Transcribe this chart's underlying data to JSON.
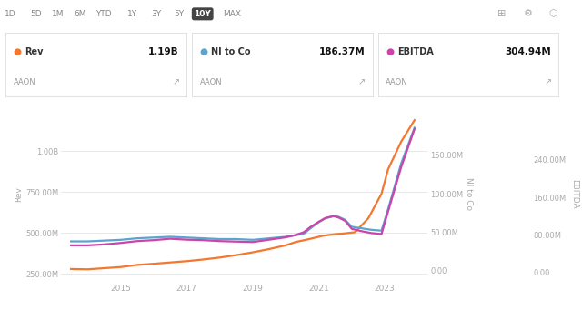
{
  "background_color": "#ffffff",
  "toolbar_buttons": [
    "1D",
    "5D",
    "1M",
    "6M",
    "YTD",
    "1Y",
    "3Y",
    "5Y",
    "10Y",
    "MAX"
  ],
  "active_button": "10Y",
  "legend_items": [
    {
      "dot_color": "#f4772e",
      "label": "Rev",
      "value": "1.19B",
      "sub": "AAON"
    },
    {
      "dot_color": "#5ba4cf",
      "label": "NI to Co",
      "value": "186.37M",
      "sub": "AAON"
    },
    {
      "dot_color": "#cc44aa",
      "label": "EBITDA",
      "value": "304.94M",
      "sub": "AAON"
    }
  ],
  "rev_color": "#f4772e",
  "ni_color": "#5ba4cf",
  "ebitda_color": "#cc44aa",
  "left_ytick_labels": [
    "250.00M",
    "500.00M",
    "750.00M",
    "1.00B"
  ],
  "left_ytick_vals": [
    250,
    500,
    750,
    1000
  ],
  "ni_ytick_labels": [
    "0.00",
    "50.00M",
    "100.00M",
    "150.00M"
  ],
  "ni_ytick_vals": [
    0,
    50,
    100,
    150
  ],
  "ebitda_ytick_labels": [
    "0.00",
    "80.00M",
    "160.00M",
    "240.00M"
  ],
  "ebitda_ytick_vals": [
    0,
    80,
    160,
    240
  ],
  "rev_ylabel": "Rev",
  "ni_ylabel": "NI to Co",
  "ebitda_ylabel": "EBITDA",
  "xtick_labels": [
    "2015",
    "2017",
    "2019",
    "2021",
    "2023"
  ],
  "rev_xlim": [
    2013.2,
    2024.3
  ],
  "rev_ylim": [
    200,
    1280
  ],
  "ni_ylim": [
    -15,
    215
  ],
  "ebitda_ylim": [
    -20,
    355
  ],
  "rev_data_x": [
    2013.5,
    2014.0,
    2014.5,
    2015.0,
    2015.5,
    2016.0,
    2016.5,
    2017.0,
    2017.5,
    2018.0,
    2018.5,
    2019.0,
    2019.5,
    2020.0,
    2020.3,
    2020.6,
    2020.9,
    2021.1,
    2021.3,
    2021.5,
    2021.8,
    2022.1,
    2022.5,
    2022.9,
    2023.1,
    2023.5,
    2023.9
  ],
  "rev_data_y": [
    280,
    278,
    285,
    292,
    305,
    312,
    320,
    328,
    338,
    350,
    365,
    382,
    402,
    425,
    445,
    458,
    472,
    482,
    488,
    493,
    498,
    505,
    590,
    740,
    890,
    1060,
    1190
  ],
  "ni_data_x": [
    2013.5,
    2014.0,
    2014.5,
    2015.0,
    2015.5,
    2016.0,
    2016.5,
    2017.0,
    2017.5,
    2018.0,
    2018.5,
    2019.0,
    2019.5,
    2020.0,
    2020.3,
    2020.55,
    2020.75,
    2021.0,
    2021.2,
    2021.45,
    2021.6,
    2021.8,
    2022.0,
    2022.3,
    2022.6,
    2022.9,
    2023.1,
    2023.5,
    2023.9
  ],
  "ni_data_y": [
    38,
    38,
    39,
    40,
    42,
    43,
    44,
    43,
    42,
    41,
    41,
    40,
    42,
    44,
    46,
    48,
    55,
    63,
    68,
    71,
    70,
    66,
    57,
    55,
    53,
    52,
    80,
    140,
    186
  ],
  "ebitda_data_x": [
    2013.5,
    2014.0,
    2014.5,
    2015.0,
    2015.5,
    2016.0,
    2016.5,
    2017.0,
    2017.5,
    2018.0,
    2018.5,
    2019.0,
    2019.5,
    2020.0,
    2020.3,
    2020.55,
    2020.75,
    2021.0,
    2021.2,
    2021.45,
    2021.6,
    2021.8,
    2022.0,
    2022.3,
    2022.6,
    2022.9,
    2023.1,
    2023.5,
    2023.9
  ],
  "ebitda_data_y": [
    58,
    58,
    60,
    63,
    67,
    69,
    72,
    70,
    69,
    67,
    66,
    65,
    70,
    75,
    80,
    86,
    97,
    108,
    116,
    120,
    117,
    110,
    93,
    88,
    84,
    82,
    130,
    225,
    305
  ],
  "grid_color": "#e8e8e8",
  "tick_color": "#aaaaaa",
  "label_color": "#aaaaaa"
}
